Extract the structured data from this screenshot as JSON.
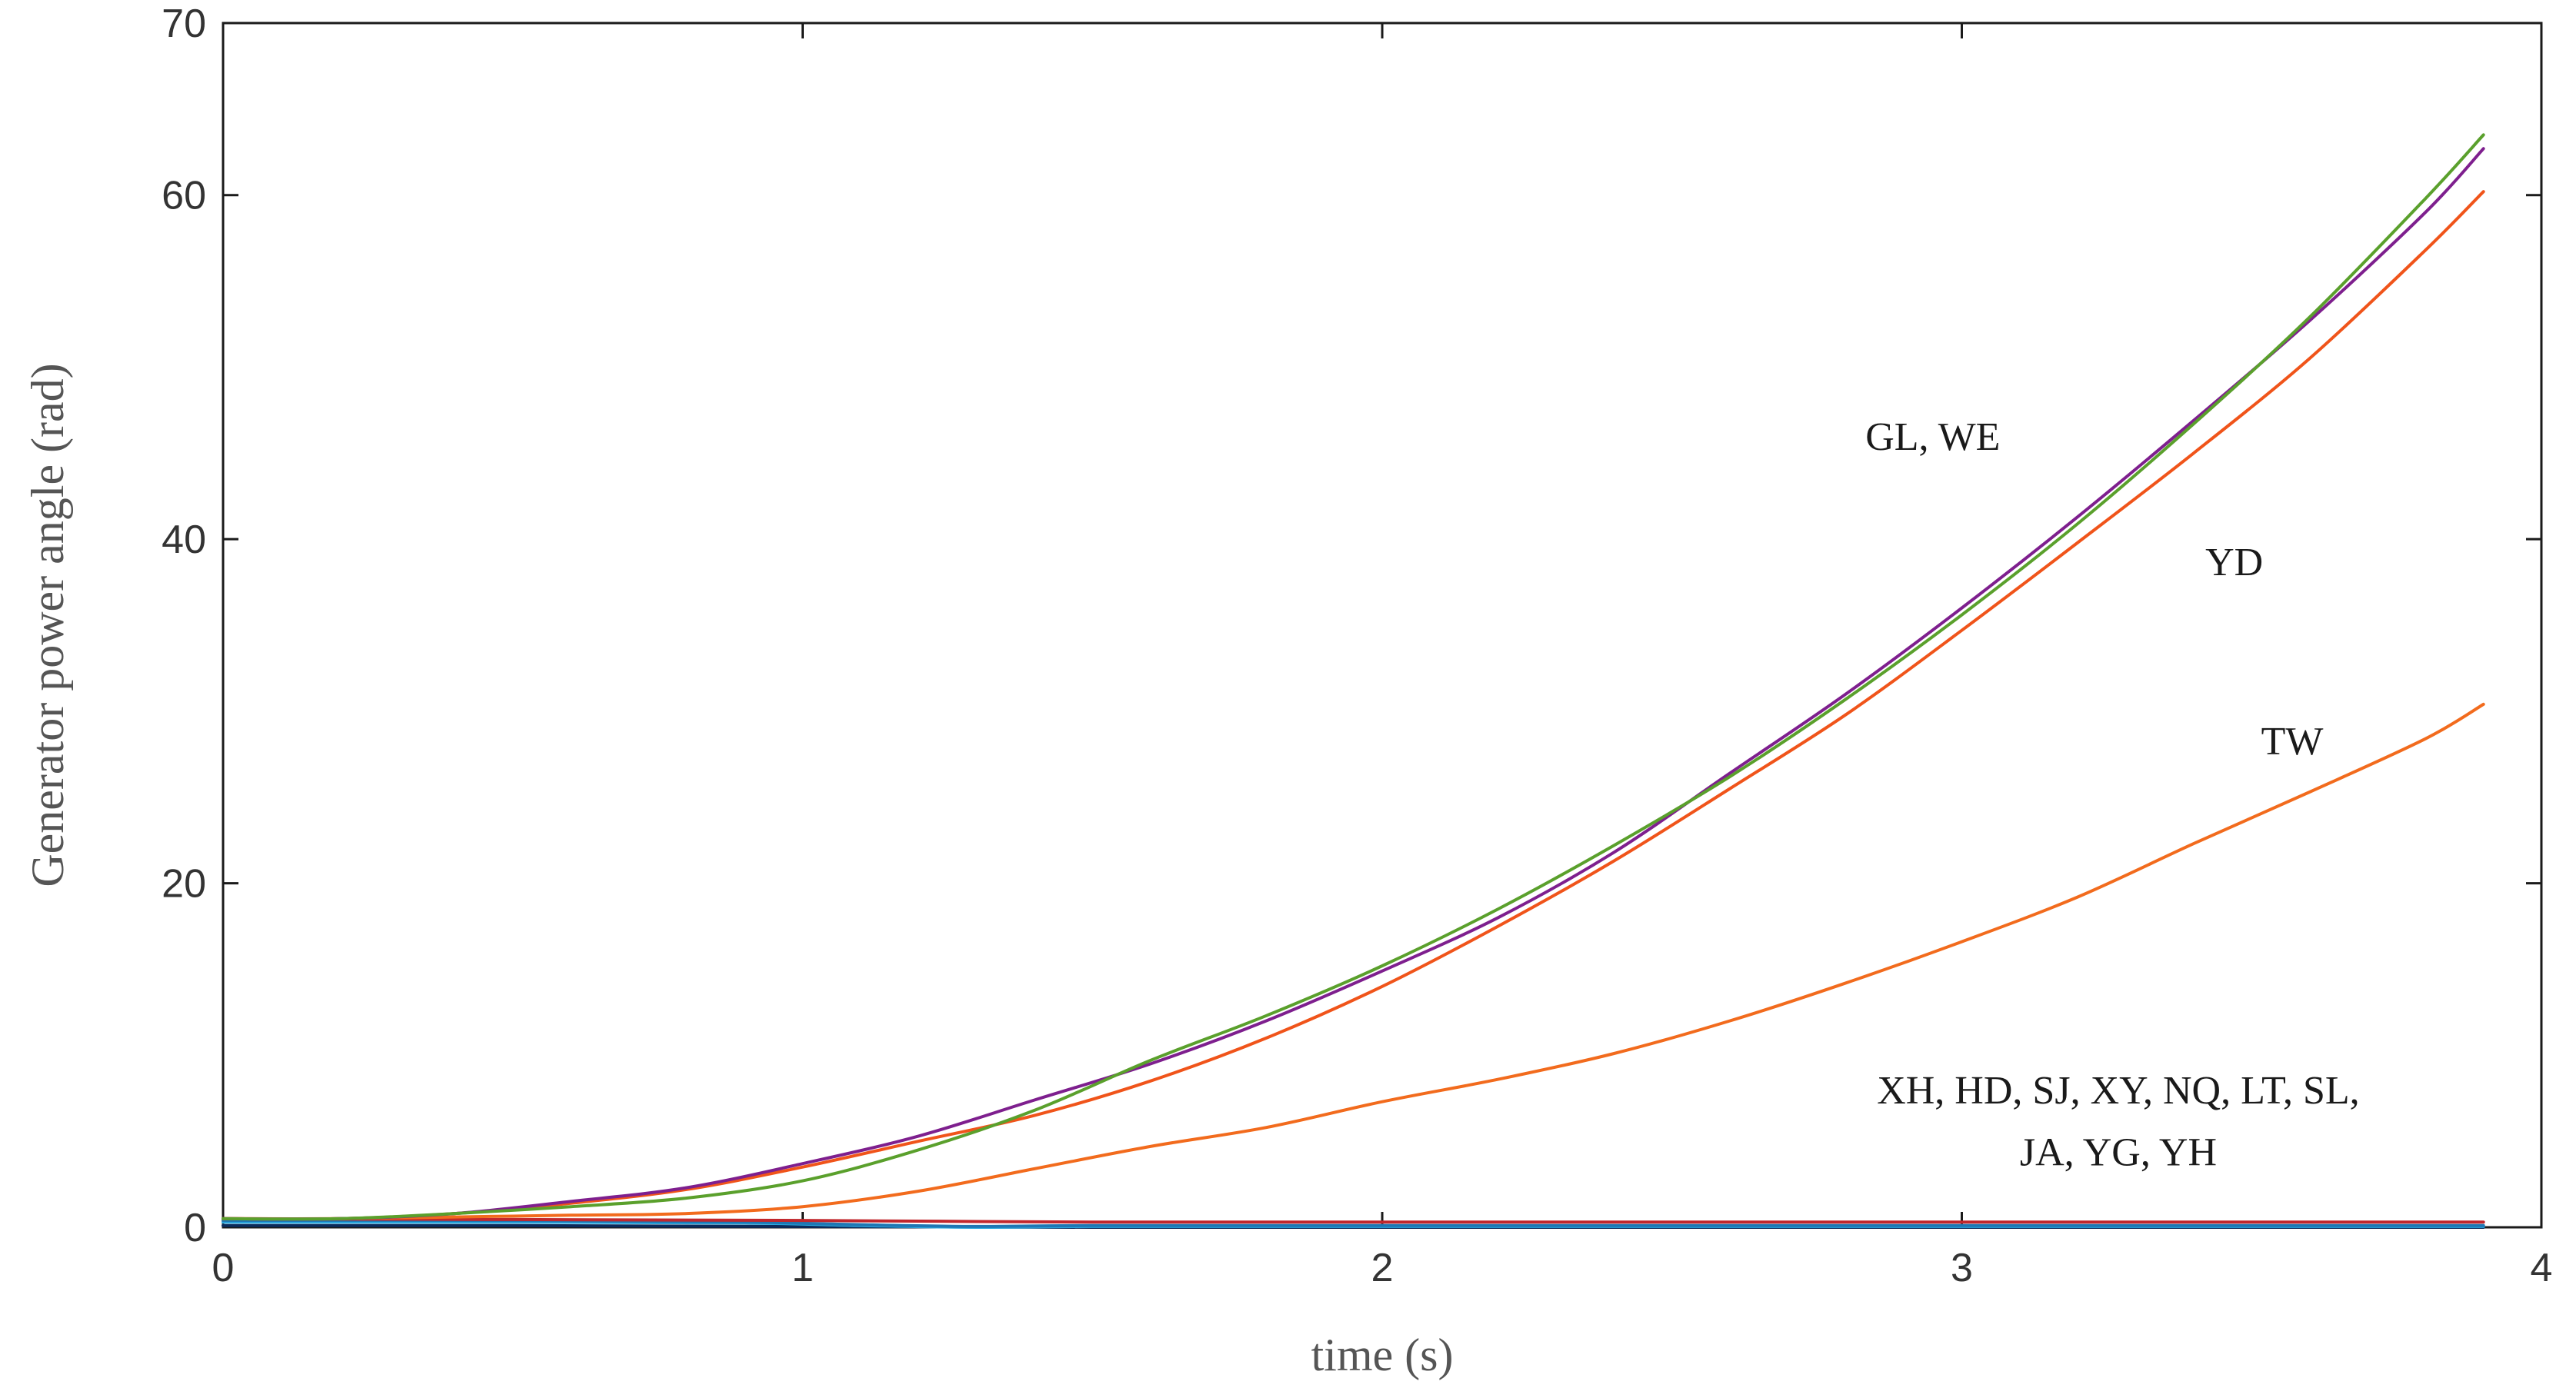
{
  "chart_data": {
    "type": "line",
    "title": "",
    "xlabel": "time (s)",
    "ylabel": "Generator power angle (rad)",
    "xlim": [
      0,
      4
    ],
    "ylim": [
      0,
      70
    ],
    "xticks": [
      0,
      1,
      2,
      3,
      4
    ],
    "yticks": [
      0,
      20,
      40,
      60,
      70
    ],
    "grid": false,
    "colors": {
      "green": "#5aa02c",
      "purple": "#7e1f8e",
      "orange": "#f0541a",
      "orange_light": "#f26b1d",
      "red": "#c1272d",
      "blue": "#1f77b4",
      "cyan": "#2aa9e0",
      "navy": "#0b2b5c"
    },
    "series": [
      {
        "name": "GL",
        "color_key": "green",
        "x": [
          0,
          0.2,
          0.4,
          0.6,
          0.8,
          1.0,
          1.2,
          1.4,
          1.6,
          1.8,
          2.0,
          2.2,
          2.4,
          2.6,
          2.8,
          3.0,
          3.2,
          3.4,
          3.6,
          3.8,
          3.9
        ],
        "y": [
          0.5,
          0.5,
          0.8,
          1.2,
          1.7,
          2.7,
          4.5,
          6.8,
          9.7,
          12.3,
          15.2,
          18.5,
          22.2,
          26.2,
          30.7,
          35.6,
          40.9,
          46.7,
          52.9,
          59.8,
          63.5
        ]
      },
      {
        "name": "WE",
        "color_key": "purple",
        "x": [
          0,
          0.2,
          0.4,
          0.6,
          0.8,
          1.0,
          1.2,
          1.4,
          1.6,
          1.8,
          2.0,
          2.2,
          2.4,
          2.6,
          2.8,
          3.0,
          3.2,
          3.4,
          3.6,
          3.8,
          3.9
        ],
        "y": [
          0.5,
          0.5,
          0.8,
          1.5,
          2.3,
          3.7,
          5.3,
          7.4,
          9.5,
          12.0,
          14.9,
          18.0,
          21.8,
          26.4,
          31.0,
          36.0,
          41.3,
          46.9,
          52.7,
          59.0,
          62.7
        ]
      },
      {
        "name": "YD",
        "color_key": "orange",
        "x": [
          0,
          0.2,
          0.4,
          0.6,
          0.8,
          1.0,
          1.2,
          1.4,
          1.6,
          1.8,
          2.0,
          2.2,
          2.4,
          2.6,
          2.8,
          3.0,
          3.2,
          3.4,
          3.6,
          3.8,
          3.9
        ],
        "y": [
          0.5,
          0.5,
          0.8,
          1.4,
          2.2,
          3.5,
          5.0,
          6.5,
          8.5,
          11.0,
          14.0,
          17.5,
          21.3,
          25.5,
          29.8,
          34.7,
          39.8,
          45.0,
          50.5,
          56.8,
          60.2
        ]
      },
      {
        "name": "TW",
        "color_key": "orange_light",
        "x": [
          0,
          0.2,
          0.4,
          0.6,
          0.8,
          1.0,
          1.2,
          1.4,
          1.6,
          1.8,
          2.0,
          2.2,
          2.4,
          2.6,
          2.8,
          3.0,
          3.2,
          3.4,
          3.6,
          3.8,
          3.9
        ],
        "y": [
          0.5,
          0.5,
          0.6,
          0.7,
          0.8,
          1.2,
          2.1,
          3.4,
          4.7,
          5.8,
          7.3,
          8.6,
          10.1,
          12.0,
          14.2,
          16.6,
          19.2,
          22.3,
          25.3,
          28.4,
          30.4
        ]
      },
      {
        "name": "XH",
        "color_key": "red",
        "x": [
          0,
          0.5,
          1.0,
          1.5,
          2.0,
          2.5,
          3.0,
          3.5,
          3.9
        ],
        "y": [
          0.5,
          0.45,
          0.4,
          0.3,
          0.3,
          0.3,
          0.3,
          0.3,
          0.3
        ]
      },
      {
        "name": "HD",
        "color_key": "blue",
        "x": [
          0,
          0.5,
          0.9,
          1.1,
          1.3,
          1.5,
          2.0,
          2.5,
          3.0,
          3.5,
          3.9
        ],
        "y": [
          0.4,
          0.4,
          0.3,
          0.15,
          0.05,
          0.1,
          0.1,
          0.1,
          0.1,
          0.1,
          0.1
        ]
      },
      {
        "name": "SJ",
        "color_key": "cyan",
        "x": [
          0,
          0.5,
          0.9,
          1.1,
          1.3,
          1.5,
          2.0,
          2.5,
          3.0,
          3.5,
          3.9
        ],
        "y": [
          0.3,
          0.3,
          0.25,
          0.1,
          0.0,
          0.05,
          0.05,
          0.05,
          0.05,
          0.05,
          0.05
        ]
      },
      {
        "name": "YH",
        "color_key": "navy",
        "x": [
          0,
          0.5,
          1.0,
          1.5,
          2.0,
          2.5,
          3.0,
          3.5,
          3.9
        ],
        "y": [
          0.1,
          0.1,
          0.05,
          0.0,
          0.0,
          0.0,
          0.0,
          0.0,
          0.0
        ]
      }
    ],
    "annotations": [
      {
        "text": "GL, WE",
        "x": 2.95,
        "y": 46.0
      },
      {
        "text": "YD",
        "x": 3.47,
        "y": 38.7
      },
      {
        "text": "TW",
        "x": 3.57,
        "y": 28.3
      },
      {
        "text": "XH, HD, SJ, XY, NQ, LT, SL,",
        "x": 3.27,
        "y": 8.0
      },
      {
        "text": "JA, YG, YH",
        "x": 3.27,
        "y": 4.4
      }
    ]
  }
}
